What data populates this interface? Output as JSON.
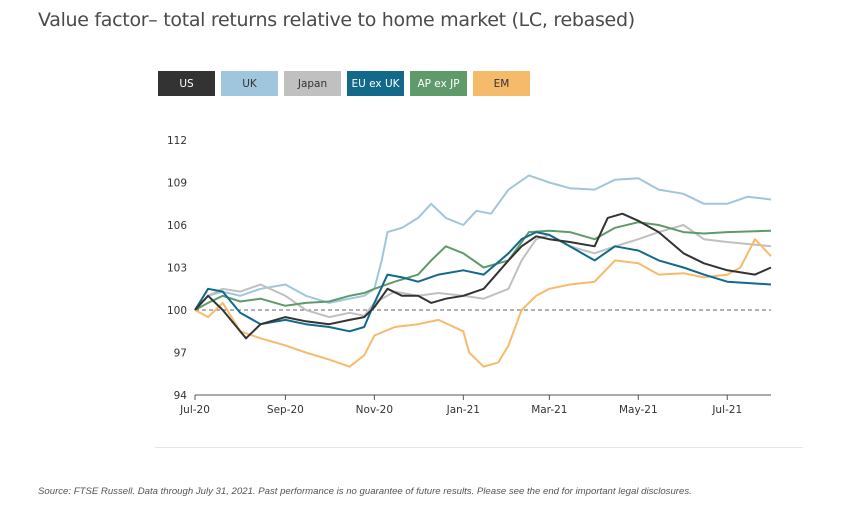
{
  "page": {
    "title": "Value factor–  total returns relative to home market (LC, rebased)",
    "source": "Source: FTSE Russell. Data through July 31, 2021. Past performance is no guarantee of future results. Please see the end for important legal disclosures."
  },
  "legend": [
    {
      "label": "US",
      "bg": "#333333",
      "fg": "#ffffff"
    },
    {
      "label": "UK",
      "bg": "#9fc6dc",
      "fg": "#333333"
    },
    {
      "label": "Japan",
      "bg": "#c0c0c0",
      "fg": "#333333"
    },
    {
      "label": "EU ex UK",
      "bg": "#13698a",
      "fg": "#ffffff"
    },
    {
      "label": "AP ex JP",
      "bg": "#5f9a6b",
      "fg": "#ffffff"
    },
    {
      "label": "EM",
      "bg": "#f6bb6a",
      "fg": "#333333"
    }
  ],
  "chart_data": {
    "type": "line",
    "ylim": [
      94,
      112
    ],
    "yticks": [
      94,
      97,
      100,
      103,
      106,
      109,
      112
    ],
    "xlim": [
      "2020-07-01",
      "2021-07-31"
    ],
    "xticks": [
      {
        "date": "2020-07-01",
        "label": "Jul-20"
      },
      {
        "date": "2020-09-01",
        "label": "Sep-20"
      },
      {
        "date": "2020-11-01",
        "label": "Nov-20"
      },
      {
        "date": "2021-01-01",
        "label": "Jan-21"
      },
      {
        "date": "2021-03-01",
        "label": "Mar-21"
      },
      {
        "date": "2021-05-01",
        "label": "May-21"
      },
      {
        "date": "2021-07-01",
        "label": "Jul-21"
      }
    ],
    "reference_line": 100,
    "series": [
      {
        "name": "UK",
        "color": "#9fc6dc",
        "points": [
          [
            "2020-07-01",
            100.0
          ],
          [
            "2020-07-10",
            101.0
          ],
          [
            "2020-07-20",
            101.3
          ],
          [
            "2020-08-01",
            101.0
          ],
          [
            "2020-08-15",
            101.5
          ],
          [
            "2020-09-01",
            101.8
          ],
          [
            "2020-09-15",
            101.0
          ],
          [
            "2020-10-01",
            100.5
          ],
          [
            "2020-10-15",
            100.8
          ],
          [
            "2020-10-25",
            101.0
          ],
          [
            "2020-11-01",
            101.5
          ],
          [
            "2020-11-06",
            103.5
          ],
          [
            "2020-11-10",
            105.5
          ],
          [
            "2020-11-20",
            105.8
          ],
          [
            "2020-12-01",
            106.5
          ],
          [
            "2020-12-10",
            107.5
          ],
          [
            "2020-12-20",
            106.5
          ],
          [
            "2021-01-01",
            106.0
          ],
          [
            "2021-01-10",
            107.0
          ],
          [
            "2021-01-20",
            106.8
          ],
          [
            "2021-02-01",
            108.5
          ],
          [
            "2021-02-15",
            109.5
          ],
          [
            "2021-03-01",
            109.0
          ],
          [
            "2021-03-15",
            108.6
          ],
          [
            "2021-04-01",
            108.5
          ],
          [
            "2021-04-15",
            109.2
          ],
          [
            "2021-05-01",
            109.3
          ],
          [
            "2021-05-15",
            108.5
          ],
          [
            "2021-06-01",
            108.2
          ],
          [
            "2021-06-15",
            107.5
          ],
          [
            "2021-07-01",
            107.5
          ],
          [
            "2021-07-15",
            108.0
          ],
          [
            "2021-07-31",
            107.8
          ]
        ]
      },
      {
        "name": "Japan",
        "color": "#c0c0c0",
        "points": [
          [
            "2020-07-01",
            100.0
          ],
          [
            "2020-07-10",
            101.0
          ],
          [
            "2020-07-20",
            101.5
          ],
          [
            "2020-08-01",
            101.3
          ],
          [
            "2020-08-15",
            101.8
          ],
          [
            "2020-09-01",
            101.0
          ],
          [
            "2020-09-15",
            100.0
          ],
          [
            "2020-10-01",
            99.5
          ],
          [
            "2020-10-15",
            99.8
          ],
          [
            "2020-10-25",
            99.6
          ],
          [
            "2020-11-01",
            100.5
          ],
          [
            "2020-11-15",
            101.3
          ],
          [
            "2020-12-01",
            101.0
          ],
          [
            "2020-12-15",
            101.2
          ],
          [
            "2021-01-01",
            101.0
          ],
          [
            "2021-01-15",
            100.8
          ],
          [
            "2021-02-01",
            101.5
          ],
          [
            "2021-02-10",
            103.5
          ],
          [
            "2021-02-20",
            105.0
          ],
          [
            "2021-03-01",
            105.3
          ],
          [
            "2021-03-15",
            104.5
          ],
          [
            "2021-04-01",
            104.0
          ],
          [
            "2021-04-15",
            104.5
          ],
          [
            "2021-05-01",
            105.0
          ],
          [
            "2021-05-15",
            105.5
          ],
          [
            "2021-06-01",
            106.0
          ],
          [
            "2021-06-15",
            105.0
          ],
          [
            "2021-07-01",
            104.8
          ],
          [
            "2021-07-31",
            104.5
          ]
        ]
      },
      {
        "name": "AP ex JP",
        "color": "#5f9a6b",
        "points": [
          [
            "2020-07-01",
            100.0
          ],
          [
            "2020-07-10",
            100.5
          ],
          [
            "2020-07-20",
            101.0
          ],
          [
            "2020-08-01",
            100.6
          ],
          [
            "2020-08-15",
            100.8
          ],
          [
            "2020-09-01",
            100.3
          ],
          [
            "2020-09-15",
            100.5
          ],
          [
            "2020-10-01",
            100.6
          ],
          [
            "2020-10-15",
            101.0
          ],
          [
            "2020-10-25",
            101.2
          ],
          [
            "2020-11-01",
            101.5
          ],
          [
            "2020-11-15",
            102.0
          ],
          [
            "2020-12-01",
            102.5
          ],
          [
            "2020-12-10",
            103.5
          ],
          [
            "2020-12-20",
            104.5
          ],
          [
            "2021-01-01",
            104.0
          ],
          [
            "2021-01-15",
            103.0
          ],
          [
            "2021-02-01",
            103.5
          ],
          [
            "2021-02-15",
            105.5
          ],
          [
            "2021-03-01",
            105.6
          ],
          [
            "2021-03-15",
            105.5
          ],
          [
            "2021-04-01",
            105.0
          ],
          [
            "2021-04-15",
            105.8
          ],
          [
            "2021-05-01",
            106.2
          ],
          [
            "2021-05-15",
            106.0
          ],
          [
            "2021-06-01",
            105.5
          ],
          [
            "2021-06-15",
            105.4
          ],
          [
            "2021-07-01",
            105.5
          ],
          [
            "2021-07-31",
            105.6
          ]
        ]
      },
      {
        "name": "EM",
        "color": "#f6bb6a",
        "points": [
          [
            "2020-07-01",
            100.0
          ],
          [
            "2020-07-10",
            99.5
          ],
          [
            "2020-07-20",
            100.5
          ],
          [
            "2020-08-01",
            98.5
          ],
          [
            "2020-08-15",
            98.0
          ],
          [
            "2020-09-01",
            97.5
          ],
          [
            "2020-09-15",
            97.0
          ],
          [
            "2020-10-01",
            96.5
          ],
          [
            "2020-10-15",
            96.0
          ],
          [
            "2020-10-25",
            96.8
          ],
          [
            "2020-11-01",
            98.2
          ],
          [
            "2020-11-15",
            98.8
          ],
          [
            "2020-12-01",
            99.0
          ],
          [
            "2020-12-15",
            99.3
          ],
          [
            "2021-01-01",
            98.5
          ],
          [
            "2021-01-05",
            97.0
          ],
          [
            "2021-01-15",
            96.0
          ],
          [
            "2021-01-25",
            96.3
          ],
          [
            "2021-02-01",
            97.5
          ],
          [
            "2021-02-10",
            100.0
          ],
          [
            "2021-02-20",
            101.0
          ],
          [
            "2021-03-01",
            101.5
          ],
          [
            "2021-03-15",
            101.8
          ],
          [
            "2021-04-01",
            102.0
          ],
          [
            "2021-04-15",
            103.5
          ],
          [
            "2021-05-01",
            103.3
          ],
          [
            "2021-05-15",
            102.5
          ],
          [
            "2021-06-01",
            102.6
          ],
          [
            "2021-06-15",
            102.3
          ],
          [
            "2021-07-01",
            102.5
          ],
          [
            "2021-07-10",
            103.0
          ],
          [
            "2021-07-20",
            105.0
          ],
          [
            "2021-07-31",
            103.8
          ]
        ]
      },
      {
        "name": "EU ex UK",
        "color": "#13698a",
        "points": [
          [
            "2020-07-01",
            100.0
          ],
          [
            "2020-07-10",
            101.5
          ],
          [
            "2020-07-20",
            101.3
          ],
          [
            "2020-08-01",
            99.8
          ],
          [
            "2020-08-15",
            99.0
          ],
          [
            "2020-09-01",
            99.3
          ],
          [
            "2020-09-15",
            99.0
          ],
          [
            "2020-10-01",
            98.8
          ],
          [
            "2020-10-15",
            98.5
          ],
          [
            "2020-10-25",
            98.8
          ],
          [
            "2020-11-01",
            100.5
          ],
          [
            "2020-11-10",
            102.5
          ],
          [
            "2020-11-20",
            102.3
          ],
          [
            "2020-12-01",
            102.0
          ],
          [
            "2020-12-15",
            102.5
          ],
          [
            "2021-01-01",
            102.8
          ],
          [
            "2021-01-15",
            102.5
          ],
          [
            "2021-02-01",
            104.0
          ],
          [
            "2021-02-10",
            105.0
          ],
          [
            "2021-02-20",
            105.5
          ],
          [
            "2021-03-01",
            105.3
          ],
          [
            "2021-03-15",
            104.5
          ],
          [
            "2021-04-01",
            103.5
          ],
          [
            "2021-04-15",
            104.5
          ],
          [
            "2021-05-01",
            104.2
          ],
          [
            "2021-05-15",
            103.5
          ],
          [
            "2021-06-01",
            103.0
          ],
          [
            "2021-06-15",
            102.5
          ],
          [
            "2021-07-01",
            102.0
          ],
          [
            "2021-07-31",
            101.8
          ]
        ]
      },
      {
        "name": "US",
        "color": "#333333",
        "points": [
          [
            "2020-07-01",
            100.0
          ],
          [
            "2020-07-10",
            101.0
          ],
          [
            "2020-07-20",
            100.0
          ],
          [
            "2020-08-01",
            98.5
          ],
          [
            "2020-08-05",
            98.0
          ],
          [
            "2020-08-15",
            99.0
          ],
          [
            "2020-09-01",
            99.5
          ],
          [
            "2020-09-15",
            99.2
          ],
          [
            "2020-10-01",
            99.0
          ],
          [
            "2020-10-15",
            99.3
          ],
          [
            "2020-10-25",
            99.5
          ],
          [
            "2020-11-01",
            100.2
          ],
          [
            "2020-11-10",
            101.5
          ],
          [
            "2020-11-20",
            101.0
          ],
          [
            "2020-12-01",
            101.0
          ],
          [
            "2020-12-10",
            100.5
          ],
          [
            "2020-12-20",
            100.8
          ],
          [
            "2021-01-01",
            101.0
          ],
          [
            "2021-01-15",
            101.5
          ],
          [
            "2021-02-01",
            103.5
          ],
          [
            "2021-02-10",
            104.5
          ],
          [
            "2021-02-20",
            105.2
          ],
          [
            "2021-03-01",
            105.0
          ],
          [
            "2021-03-15",
            104.8
          ],
          [
            "2021-04-01",
            104.5
          ],
          [
            "2021-04-10",
            106.5
          ],
          [
            "2021-04-20",
            106.8
          ],
          [
            "2021-05-01",
            106.3
          ],
          [
            "2021-05-15",
            105.5
          ],
          [
            "2021-06-01",
            104.0
          ],
          [
            "2021-06-15",
            103.3
          ],
          [
            "2021-07-01",
            102.8
          ],
          [
            "2021-07-20",
            102.5
          ],
          [
            "2021-07-31",
            103.0
          ]
        ]
      }
    ]
  }
}
